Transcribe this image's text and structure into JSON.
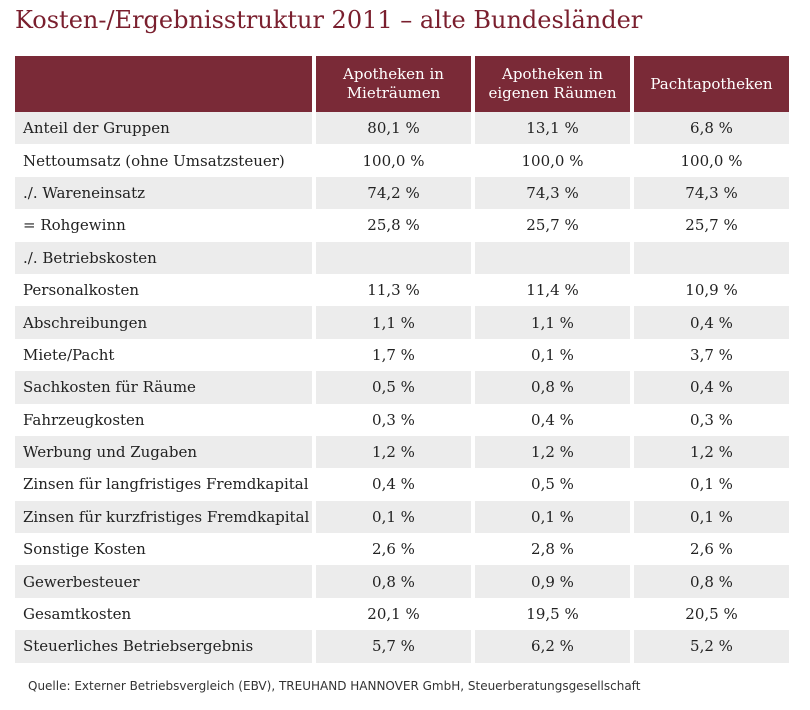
{
  "title": "Kosten-/Ergebnisstruktur 2011 – alte Bundesländer",
  "table": {
    "headers": [
      "",
      "Apotheken in Mieträumen",
      "Apotheken in eigenen Räumen",
      "Pachtapotheken"
    ],
    "rows": [
      {
        "label": "Anteil der Gruppen",
        "values": [
          "80,1 %",
          "13,1 %",
          "6,8 %"
        ]
      },
      {
        "label": "Nettoumsatz (ohne Umsatzsteuer)",
        "values": [
          "100,0 %",
          "100,0 %",
          "100,0 %"
        ]
      },
      {
        "label": "./. Wareneinsatz",
        "values": [
          "74,2 %",
          "74,3 %",
          "74,3 %"
        ]
      },
      {
        "label": "= Rohgewinn",
        "values": [
          "25,8 %",
          "25,7 %",
          "25,7 %"
        ]
      },
      {
        "label": "./. Betriebskosten",
        "values": [
          "",
          "",
          ""
        ]
      },
      {
        "label": "Personalkosten",
        "values": [
          "11,3 %",
          "11,4 %",
          "10,9 %"
        ]
      },
      {
        "label": "Abschreibungen",
        "values": [
          "1,1 %",
          "1,1 %",
          "0,4 %"
        ]
      },
      {
        "label": "Miete/Pacht",
        "values": [
          "1,7 %",
          "0,1 %",
          "3,7 %"
        ]
      },
      {
        "label": "Sachkosten für Räume",
        "values": [
          "0,5 %",
          "0,8 %",
          "0,4 %"
        ]
      },
      {
        "label": "Fahrzeugkosten",
        "values": [
          "0,3 %",
          "0,4 %",
          "0,3 %"
        ]
      },
      {
        "label": "Werbung und Zugaben",
        "values": [
          "1,2 %",
          "1,2 %",
          "1,2 %"
        ]
      },
      {
        "label": "Zinsen für langfristiges Fremdkapital",
        "values": [
          "0,4 %",
          "0,5 %",
          "0,1 %"
        ]
      },
      {
        "label": "Zinsen für kurzfristiges Fremdkapital",
        "values": [
          "0,1 %",
          "0,1 %",
          "0,1 %"
        ]
      },
      {
        "label": "Sonstige Kosten",
        "values": [
          "2,6 %",
          "2,8 %",
          "2,6 %"
        ]
      },
      {
        "label": "Gewerbesteuer",
        "values": [
          "0,8 %",
          "0,9 %",
          "0,8 %"
        ]
      },
      {
        "label": "Gesamtkosten",
        "values": [
          "20,1 %",
          "19,5 %",
          "20,5 %"
        ]
      },
      {
        "label": "Steuerliches Betriebsergebnis",
        "values": [
          "5,7 %",
          "6,2 %",
          "5,2 %"
        ]
      }
    ]
  },
  "source": "Quelle: Externer Betriebsvergleich (EBV), TREUHAND HANNOVER GmbH, Steuerberatungsgesellschaft",
  "colors": {
    "header_bg": "#7a2a37",
    "title": "#7a1f2e",
    "row_shade": "#ececec"
  }
}
